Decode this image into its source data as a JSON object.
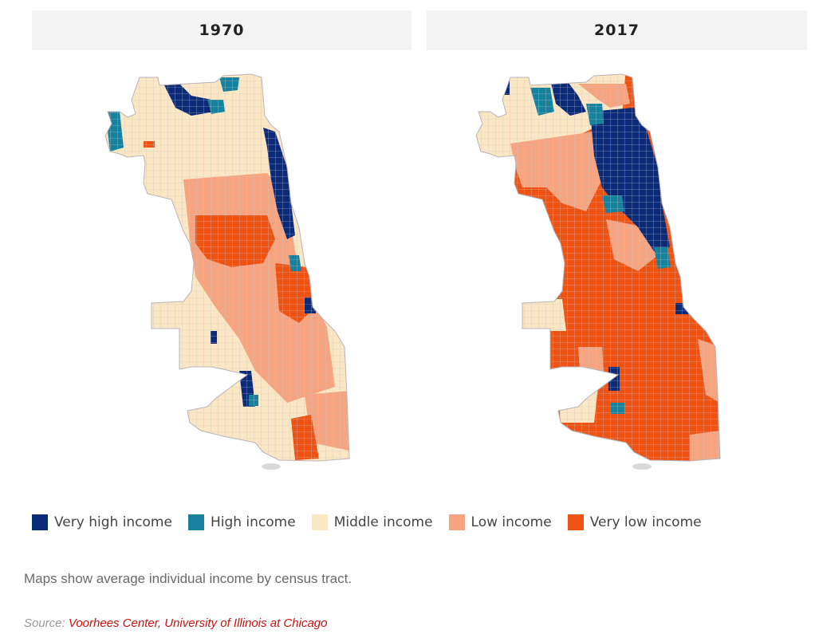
{
  "panels": [
    {
      "title": "1970",
      "dominant": "middle",
      "very_low_share": "small"
    },
    {
      "title": "2017",
      "dominant": "very-low",
      "very_low_share": "large"
    }
  ],
  "legend": [
    {
      "label": "Very high income",
      "color": "#0b2a78"
    },
    {
      "label": "High income",
      "color": "#16829d"
    },
    {
      "label": "Middle income",
      "color": "#fbe7c3"
    },
    {
      "label": "Low income",
      "color": "#f6a47f"
    },
    {
      "label": "Very low income",
      "color": "#ee5314"
    }
  ],
  "note": "Maps show average individual income by census tract.",
  "source": {
    "prefix": "Source: ",
    "link_text": "Voorhees Center, University of Illinois at Chicago"
  },
  "colors": {
    "tract_border": "#c9c3c9",
    "header_bg": "#f3f3f3"
  }
}
